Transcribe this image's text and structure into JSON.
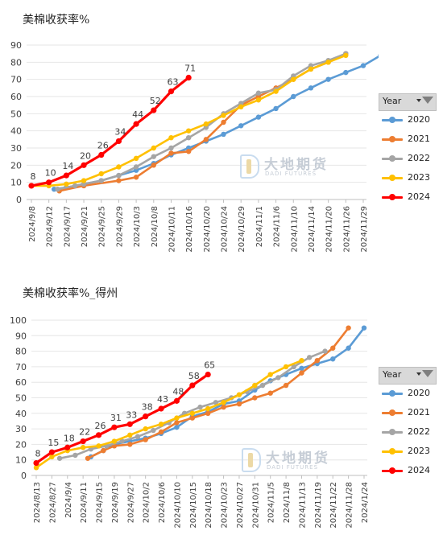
{
  "charts": [
    {
      "title": "美棉收获率%",
      "legend_header": "Year",
      "watermark": {
        "name": "大地期货",
        "sub": "DADI FUTURES"
      }
    },
    {
      "title": "美棉收获率%_得州",
      "legend_header": "Year",
      "watermark": {
        "name": "大地期货",
        "sub": "DADI FUTURES"
      }
    }
  ],
  "chart_data": [
    {
      "type": "line",
      "title": "美棉收获率%",
      "categories": [
        "2024/9/8",
        "2024/9/12",
        "2024/9/17",
        "2024/9/21",
        "2024/9/25",
        "2024/9/29",
        "2024/10/3",
        "2024/10/8",
        "2024/10/11",
        "2024/10/16",
        "2024/10/20",
        "2024/10/24",
        "2024/10/29",
        "2024/11/1",
        "2024/11/6",
        "2024/11/10",
        "2024/11/14",
        "2024/11/20",
        "2024/11/26",
        "2024/11/29"
      ],
      "ylim": [
        0,
        90
      ],
      "yticks": [
        0,
        10,
        20,
        30,
        40,
        50,
        60,
        70,
        80,
        90
      ],
      "colors": {
        "2020": "#5b9bd5",
        "2021": "#ed7d31",
        "2022": "#a5a5a5",
        "2023": "#ffc000",
        "2024": "#ff0000"
      },
      "series": [
        {
          "name": "2020",
          "points": [
            [
              1.3,
              6
            ],
            [
              2,
              7
            ],
            [
              3,
              9
            ],
            [
              4,
              11
            ],
            [
              5,
              14
            ],
            [
              6,
              17
            ],
            [
              7,
              21
            ],
            [
              8,
              26
            ],
            [
              9,
              30
            ],
            [
              10,
              34
            ],
            [
              11,
              38
            ],
            [
              12,
              43
            ],
            [
              13,
              48
            ],
            [
              14,
              53
            ],
            [
              15,
              60
            ],
            [
              16,
              65
            ],
            [
              17,
              70
            ],
            [
              18,
              74
            ],
            [
              19,
              78
            ],
            [
              20,
              84
            ]
          ]
        },
        {
          "name": "2021",
          "points": [
            [
              1.6,
              5
            ],
            [
              3,
              8
            ],
            [
              5,
              11
            ],
            [
              6,
              13
            ],
            [
              7,
              20
            ],
            [
              8,
              27
            ],
            [
              9,
              28
            ],
            [
              10,
              35
            ],
            [
              11,
              45
            ],
            [
              12,
              55
            ],
            [
              13,
              60
            ],
            [
              14,
              65
            ],
            [
              15,
              70
            ],
            [
              16,
              76
            ],
            [
              17,
              80
            ],
            [
              18,
              85
            ]
          ]
        },
        {
          "name": "2022",
          "points": [
            [
              1.5,
              6
            ],
            [
              2.5,
              8
            ],
            [
              3,
              9
            ],
            [
              4,
              11
            ],
            [
              5,
              14
            ],
            [
              6,
              19
            ],
            [
              7,
              25
            ],
            [
              8,
              30
            ],
            [
              9,
              36
            ],
            [
              10,
              42
            ],
            [
              11,
              50
            ],
            [
              12,
              56
            ],
            [
              13,
              62
            ],
            [
              14,
              64
            ],
            [
              15,
              72
            ],
            [
              16,
              78
            ],
            [
              17,
              81
            ],
            [
              18,
              85
            ]
          ]
        },
        {
          "name": "2023",
          "points": [
            [
              0,
              8
            ],
            [
              1,
              8
            ],
            [
              2,
              9
            ],
            [
              3,
              11
            ],
            [
              4,
              15
            ],
            [
              5,
              19
            ],
            [
              6,
              24
            ],
            [
              7,
              30
            ],
            [
              8,
              36
            ],
            [
              9,
              40
            ],
            [
              10,
              44
            ],
            [
              11,
              49
            ],
            [
              12,
              54
            ],
            [
              13,
              58
            ],
            [
              14,
              63
            ],
            [
              15,
              70
            ],
            [
              16,
              76
            ],
            [
              17,
              80
            ],
            [
              18,
              84
            ]
          ]
        },
        {
          "name": "2024",
          "points": [
            [
              0,
              8
            ],
            [
              1,
              10
            ],
            [
              2,
              14
            ],
            [
              3,
              20
            ],
            [
              4,
              26
            ],
            [
              5,
              34
            ],
            [
              6,
              44
            ],
            [
              7,
              52
            ],
            [
              8,
              63
            ],
            [
              9,
              71
            ]
          ]
        }
      ],
      "data_labels": {
        "series": "2024",
        "values": [
          8,
          10,
          14,
          20,
          26,
          34,
          44,
          52,
          63,
          71
        ]
      }
    },
    {
      "type": "line",
      "title": "美棉收获率%_得州",
      "categories": [
        "2024/8/13",
        "2024/8/27",
        "2024/9/4",
        "2024/9/11",
        "2024/9/15",
        "2024/9/19",
        "2024/9/27",
        "2024/10/2",
        "2024/10/6",
        "2024/10/10",
        "2024/10/15",
        "2024/10/18",
        "2024/10/23",
        "2024/10/27",
        "2024/10/31",
        "2024/11/5",
        "2024/11/8",
        "2024/11/13",
        "2024/11/19",
        "2024/11/22",
        "2024/11/28",
        "2024/1/24"
      ],
      "ylim": [
        0,
        100
      ],
      "yticks": [
        0,
        10,
        20,
        30,
        40,
        50,
        60,
        70,
        80,
        90,
        100
      ],
      "colors": {
        "2020": "#5b9bd5",
        "2021": "#ed7d31",
        "2022": "#a5a5a5",
        "2023": "#ffc000",
        "2024": "#ff0000"
      },
      "series": [
        {
          "name": "2020",
          "points": [
            [
              3.5,
              12
            ],
            [
              4.3,
              16
            ],
            [
              5,
              20
            ],
            [
              6,
              22
            ],
            [
              7,
              24
            ],
            [
              8,
              27
            ],
            [
              9,
              31
            ],
            [
              10,
              38
            ],
            [
              11,
              41
            ],
            [
              12,
              46
            ],
            [
              13,
              48
            ],
            [
              14,
              55
            ],
            [
              15,
              61
            ],
            [
              16,
              65
            ],
            [
              17,
              69
            ],
            [
              18,
              72
            ],
            [
              19,
              75
            ],
            [
              20,
              82
            ],
            [
              21,
              95
            ]
          ]
        },
        {
          "name": "2021",
          "points": [
            [
              3.3,
              11
            ],
            [
              4.3,
              16
            ],
            [
              5,
              19
            ],
            [
              6,
              20
            ],
            [
              7,
              23
            ],
            [
              8,
              28
            ],
            [
              9,
              34
            ],
            [
              10,
              37
            ],
            [
              11,
              40
            ],
            [
              12,
              44
            ],
            [
              13,
              46
            ],
            [
              14,
              50
            ],
            [
              15,
              53
            ],
            [
              16,
              58
            ],
            [
              17,
              66
            ],
            [
              18,
              74
            ],
            [
              19,
              82
            ],
            [
              20,
              95
            ]
          ]
        },
        {
          "name": "2022",
          "points": [
            [
              1.5,
              11
            ],
            [
              2.5,
              13
            ],
            [
              3.5,
              17
            ],
            [
              4.5,
              19
            ],
            [
              5.5,
              22
            ],
            [
              6.5,
              25
            ],
            [
              7.5,
              29
            ],
            [
              8.5,
              34
            ],
            [
              9.5,
              40
            ],
            [
              10.5,
              44
            ],
            [
              11.5,
              47
            ],
            [
              12.5,
              50
            ],
            [
              13.5,
              54
            ],
            [
              14.5,
              58
            ],
            [
              15.5,
              63
            ],
            [
              16.5,
              70
            ],
            [
              17.5,
              76
            ],
            [
              18.5,
              80
            ]
          ]
        },
        {
          "name": "2023",
          "points": [
            [
              0,
              5
            ],
            [
              1,
              12
            ],
            [
              2,
              16
            ],
            [
              3,
              18
            ],
            [
              4,
              19
            ],
            [
              5,
              22
            ],
            [
              6,
              26
            ],
            [
              7,
              30
            ],
            [
              8,
              33
            ],
            [
              9,
              37
            ],
            [
              10,
              40
            ],
            [
              11,
              43
            ],
            [
              12,
              47
            ],
            [
              13,
              52
            ],
            [
              14,
              58
            ],
            [
              15,
              65
            ],
            [
              16,
              70
            ],
            [
              17,
              74
            ]
          ]
        },
        {
          "name": "2024",
          "points": [
            [
              0,
              8
            ],
            [
              1,
              15
            ],
            [
              2,
              18
            ],
            [
              3,
              22
            ],
            [
              4,
              26
            ],
            [
              5,
              31
            ],
            [
              6,
              33
            ],
            [
              7,
              38
            ],
            [
              8,
              43
            ],
            [
              9,
              48
            ],
            [
              10,
              58
            ],
            [
              11,
              65
            ]
          ]
        }
      ],
      "data_labels": {
        "series": "2024",
        "values": [
          8,
          15,
          18,
          22,
          26,
          31,
          33,
          38,
          43,
          48,
          58,
          65
        ]
      }
    }
  ]
}
